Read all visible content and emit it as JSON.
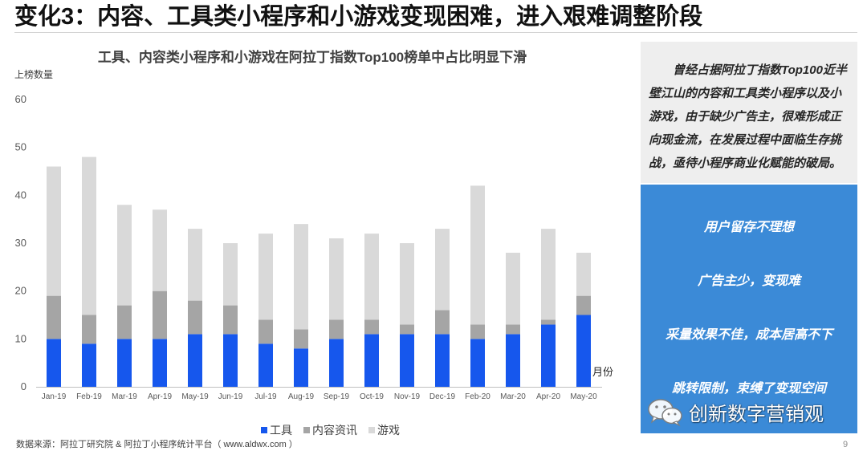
{
  "slide": {
    "title": "变化3：内容、工具类小程序和小游戏变现困难，进入艰难调整阶段",
    "source": "数据来源：阿拉丁研究院 & 阿拉丁小程序统计平台（ www.aldwx.com ）",
    "page_number": "9"
  },
  "chart_data": {
    "type": "bar",
    "stacked": true,
    "title": "工具、内容类小程序和小游戏在阿拉丁指数Top100榜单中占比明显下滑",
    "ylabel": "上榜数量",
    "xlabel": "月份",
    "ylim": [
      0,
      60
    ],
    "yticks": [
      0,
      10,
      20,
      30,
      40,
      50,
      60
    ],
    "grid": false,
    "legend": "bottom",
    "categories": [
      "Jan-19",
      "Feb-19",
      "Mar-19",
      "Apr-19",
      "May-19",
      "Jun-19",
      "Jul-19",
      "Aug-19",
      "Sep-19",
      "Oct-19",
      "Nov-19",
      "Dec-19",
      "Feb-20",
      "Mar-20",
      "Apr-20",
      "May-20"
    ],
    "series": [
      {
        "name": "工具",
        "color": "#1657ed",
        "values": [
          10,
          9,
          10,
          10,
          11,
          11,
          9,
          8,
          10,
          11,
          11,
          11,
          10,
          11,
          13,
          15
        ]
      },
      {
        "name": "内容资讯",
        "color": "#a5a5a5",
        "values": [
          9,
          6,
          7,
          10,
          7,
          6,
          5,
          4,
          4,
          3,
          2,
          5,
          3,
          2,
          1,
          4
        ]
      },
      {
        "name": "游戏",
        "color": "#d9d9d9",
        "values": [
          27,
          33,
          21,
          17,
          15,
          13,
          18,
          22,
          17,
          18,
          17,
          17,
          29,
          15,
          19,
          9
        ]
      }
    ]
  },
  "summary": {
    "lines": [
      "曾经占据阿拉丁指数Top100近半",
      "壁江山的内容和工具类小程序以及小",
      "游戏，由于缺少广告主，很难形成正",
      "向现金流，在发展过程中面临生存挑",
      "战，亟待小程序商业化赋能的破局。"
    ]
  },
  "challenges": {
    "items": [
      "用户留存不理想",
      "广告主少，变现难",
      "采量效果不佳，成本居高不下",
      "跳转限制，束缚了变现空间"
    ]
  },
  "watermark": {
    "icon": "wechat-icon",
    "text": "创新数字营销观"
  }
}
